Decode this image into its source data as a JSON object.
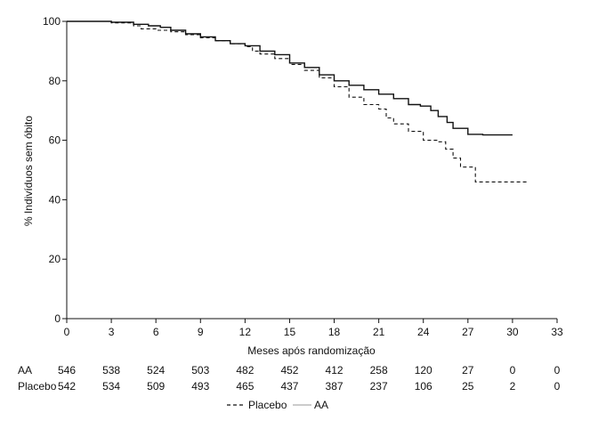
{
  "chart_data": {
    "type": "line",
    "step": true,
    "xlabel": "Meses após randomização",
    "ylabel": "% Indivíduos sem óbito",
    "xlim": [
      0,
      33
    ],
    "ylim": [
      0,
      100
    ],
    "xticks": [
      0,
      3,
      6,
      9,
      12,
      15,
      18,
      21,
      24,
      27,
      30,
      33
    ],
    "yticks": [
      0,
      20,
      40,
      60,
      80,
      100
    ],
    "legend_position": "bottom-center",
    "series": [
      {
        "name": "AA",
        "style": "solid",
        "color": "#111111",
        "x": [
          0,
          3,
          4.5,
          5.5,
          6.3,
          7,
          8,
          9,
          10,
          11,
          12,
          13,
          14,
          15,
          16,
          17,
          18,
          19,
          20,
          21,
          22,
          23,
          23.8,
          24.5,
          25,
          25.6,
          26,
          27,
          28,
          30
        ],
        "y": [
          100,
          99.7,
          99,
          98.5,
          98,
          97,
          95.8,
          94.8,
          93.5,
          92.5,
          91.8,
          90,
          88.8,
          86,
          84.5,
          82,
          80,
          78.5,
          77,
          75.5,
          74,
          72,
          71.5,
          70,
          68,
          66,
          64,
          62,
          61.8,
          61.8
        ]
      },
      {
        "name": "Placebo",
        "style": "dashed",
        "color": "#111111",
        "x": [
          0,
          3,
          4.5,
          5,
          6,
          7,
          8,
          9,
          10,
          11,
          12,
          12.5,
          13,
          14,
          15,
          16,
          17,
          18,
          19,
          20,
          21,
          21.5,
          22,
          23,
          24,
          25,
          25.5,
          26,
          26.5,
          27,
          27.5,
          28,
          29,
          30,
          31
        ],
        "y": [
          100,
          99.5,
          98.5,
          97.5,
          97,
          96.5,
          95.5,
          94.5,
          93.5,
          92.5,
          91.5,
          90,
          89,
          87.5,
          85.5,
          83.5,
          81,
          78,
          74.5,
          72,
          70.5,
          67.5,
          65.5,
          63,
          60,
          59.5,
          57,
          54,
          51,
          51,
          46,
          46,
          46,
          46,
          46
        ]
      }
    ],
    "risk_table": {
      "times": [
        "0",
        "3",
        "6",
        "9",
        "12",
        "15",
        "18",
        "21",
        "24",
        "27",
        "30",
        "33"
      ],
      "rows": [
        {
          "label": "AA",
          "values": [
            "546",
            "538",
            "524",
            "503",
            "482",
            "452",
            "412",
            "258",
            "120",
            "27",
            "0",
            "0"
          ]
        },
        {
          "label": "Placebo",
          "values": [
            "542",
            "534",
            "509",
            "493",
            "465",
            "437",
            "387",
            "237",
            "106",
            "25",
            "2",
            "0"
          ]
        }
      ]
    }
  }
}
